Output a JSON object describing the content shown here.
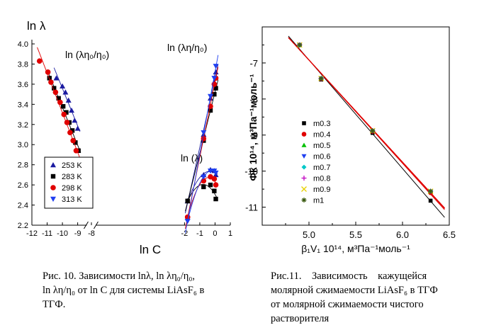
{
  "captions": {
    "left": {
      "line1": "Рис. 10. Зависимости lnλ, ln λη₀/η₀,",
      "line2": "ln λη/η₀ от ln C для системы LiAsF₆ в",
      "line3": "ТГФ."
    },
    "right": {
      "line1": "Рис.11.    Зависимость    кажущейся",
      "line2": "молярной сжимаемости LiAsF₆ в ТГФ",
      "line3": "от молярной сжимаемости чистого",
      "line4": "растворителя"
    }
  },
  "chart_data": [
    {
      "type": "scatter",
      "ylabel": "ln λ",
      "xlabel": "ln C",
      "xlim": [
        -12,
        1
      ],
      "ylim": [
        2.2,
        4.0
      ],
      "axis_break": "//",
      "x_ticks": [
        "-12",
        "-11",
        "-10",
        "-9",
        "-8",
        "-2",
        "-1",
        "0",
        "1"
      ],
      "y_ticks": [
        "2.2",
        "2.4",
        "2.6",
        "2.8",
        "3.0",
        "3.2",
        "3.4",
        "3.6",
        "3.8",
        "4.0"
      ],
      "annotations": [
        "ln (λη₀/η₀)",
        "ln (λη/η₀)",
        "ln (λ)"
      ],
      "legend_position": "bottom-left",
      "series": [
        {
          "name": "253 K",
          "color": "#1a1aa0",
          "marker": "triangle-up",
          "groups": [
            {
              "label": "ln (λη₀/η₀)",
              "x": [
                -10.4,
                -10.0,
                -9.8,
                -9.6,
                -9.4,
                -9.2,
                -9.0
              ],
              "y": [
                3.66,
                3.58,
                3.52,
                3.44,
                3.34,
                3.24,
                3.16
              ]
            },
            {
              "label": "ln (λη/η₀)",
              "x": [
                -1.8,
                -0.75,
                -0.3,
                -0.05,
                0.05
              ],
              "y": [
                2.44,
                3.1,
                3.46,
                3.62,
                3.72
              ]
            },
            {
              "label": "ln (λ)",
              "x": [
                -1.8,
                -0.75,
                -0.3,
                -0.05,
                0.05
              ],
              "y": [
                2.44,
                2.7,
                2.75,
                2.74,
                2.7
              ]
            }
          ]
        },
        {
          "name": "283 K",
          "color": "#000000",
          "marker": "square",
          "groups": [
            {
              "label": "ln (λη₀/η₀)",
              "x": [
                -10.85,
                -10.55,
                -10.25,
                -9.95,
                -9.75,
                -9.55,
                -9.35,
                -9.15,
                -8.95
              ],
              "y": [
                3.66,
                3.56,
                3.46,
                3.38,
                3.32,
                3.22,
                3.14,
                3.02,
                2.94
              ]
            },
            {
              "label": "ln (λη/η₀)",
              "x": [
                -1.8,
                -0.75,
                -0.3,
                -0.05,
                0.05
              ],
              "y": [
                2.44,
                3.04,
                3.34,
                3.5,
                3.56
              ]
            },
            {
              "label": "ln (λ)",
              "x": [
                -1.8,
                -0.75,
                -0.3,
                -0.05,
                0.05
              ],
              "y": [
                2.44,
                2.58,
                2.6,
                2.54,
                2.46
              ]
            }
          ]
        },
        {
          "name": "298 K",
          "color": "#e00000",
          "marker": "circle",
          "groups": [
            {
              "label": "ln (λη₀/η₀)",
              "x": [
                -11.5,
                -10.95,
                -10.75,
                -10.45,
                -10.15,
                -9.9,
                -9.7,
                -9.5,
                -9.3,
                -9.1,
                -8.9
              ],
              "y": [
                3.83,
                3.72,
                3.62,
                3.52,
                3.42,
                3.3,
                3.22,
                3.12,
                3.04,
                2.94,
                2.84
              ]
            },
            {
              "label": "ln (λη/η₀)",
              "x": [
                -1.8,
                -0.75,
                -0.3,
                -0.05,
                0.05
              ],
              "y": [
                2.28,
                3.06,
                3.38,
                3.6,
                3.66
              ]
            },
            {
              "label": "ln (λ)",
              "x": [
                -1.8,
                -0.75,
                -0.3,
                -0.05,
                0.05
              ],
              "y": [
                2.28,
                2.64,
                2.68,
                2.66,
                2.6
              ]
            }
          ]
        },
        {
          "name": "313 K",
          "color": "#1f3ff0",
          "marker": "triangle-down",
          "groups": [
            {
              "label": "ln (λη/η₀)",
              "x": [
                -1.8,
                -0.75,
                -0.3,
                -0.05,
                0.05
              ],
              "y": [
                2.24,
                3.12,
                3.48,
                3.66,
                3.78
              ]
            },
            {
              "label": "ln (λ)",
              "x": [
                -1.8,
                -0.75,
                -0.3,
                -0.05,
                0.05
              ],
              "y": [
                2.24,
                2.68,
                2.74,
                2.74,
                2.72
              ]
            }
          ]
        }
      ]
    },
    {
      "type": "scatter",
      "ylabel": "Φk 10¹⁴, м³Па⁻¹моль⁻¹",
      "xlabel": "β₁V₁ 10¹⁴, м³Па⁻¹моль⁻¹",
      "xlim": [
        4.5,
        6.5
      ],
      "ylim": [
        -11.5,
        -6.0
      ],
      "x_ticks": [
        "5.0",
        "5.5",
        "6.0",
        "6.5"
      ],
      "y_ticks": [
        "-7",
        "-8",
        "-9",
        "-10",
        "-11"
      ],
      "legend_position": "center-right",
      "series": [
        {
          "name": "m0.3",
          "color": "#000000",
          "marker": "square",
          "x": [
            4.9,
            5.13,
            5.68,
            6.3
          ],
          "y": [
            -6.5,
            -7.46,
            -8.94,
            -10.82
          ]
        },
        {
          "name": "m0.4",
          "color": "#e00000",
          "marker": "circle",
          "x": [
            4.9,
            5.13,
            5.68,
            6.3
          ],
          "y": [
            -6.5,
            -7.44,
            -8.9,
            -10.6
          ]
        },
        {
          "name": "m0.5",
          "color": "#00c000",
          "marker": "triangle-up",
          "x": [
            4.9,
            5.13,
            5.68,
            6.3
          ],
          "y": [
            -6.5,
            -7.42,
            -8.88,
            -10.55
          ]
        },
        {
          "name": "m0.6",
          "color": "#1f3ff0",
          "marker": "triangle-down",
          "x": [
            4.9,
            5.13,
            5.68,
            6.3
          ],
          "y": [
            -6.5,
            -7.43,
            -8.89,
            -10.57
          ]
        },
        {
          "name": "m0.7",
          "color": "#00c8c8",
          "marker": "diamond",
          "x": [
            4.9,
            5.13,
            5.68,
            6.3
          ],
          "y": [
            -6.5,
            -7.43,
            -8.88,
            -10.56
          ]
        },
        {
          "name": "m0.8",
          "color": "#c000c0",
          "marker": "plus",
          "x": [
            4.9,
            5.13,
            5.68,
            6.3
          ],
          "y": [
            -6.5,
            -7.43,
            -8.88,
            -10.56
          ]
        },
        {
          "name": "m0.9",
          "color": "#e8d000",
          "marker": "cross",
          "x": [
            4.9,
            5.13,
            5.68,
            6.3
          ],
          "y": [
            -6.5,
            -7.43,
            -8.88,
            -10.56
          ]
        },
        {
          "name": "m1",
          "color": "#3a5a10",
          "marker": "star",
          "x": [
            4.9,
            5.13,
            5.68,
            6.3
          ],
          "y": [
            -6.5,
            -7.43,
            -8.88,
            -10.56
          ]
        }
      ]
    }
  ]
}
